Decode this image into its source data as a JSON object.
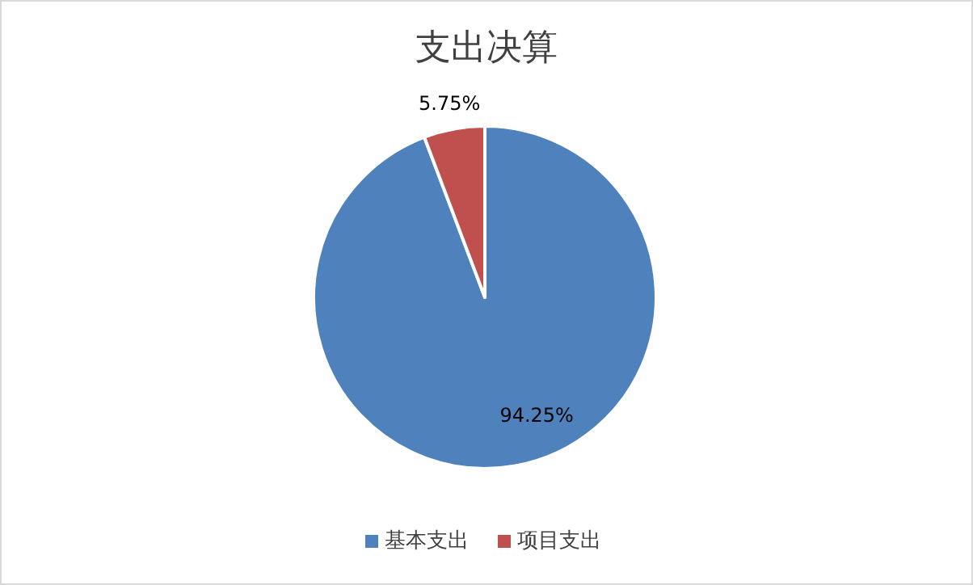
{
  "chart_data": {
    "type": "pie",
    "title": "支出决算",
    "categories": [
      "基本支出",
      "项目支出"
    ],
    "values": [
      94.25,
      5.75
    ],
    "colors": [
      "#4f81bd",
      "#c0504d"
    ],
    "value_labels": [
      "94.25%",
      "5.75%"
    ],
    "legend": "bottom"
  }
}
